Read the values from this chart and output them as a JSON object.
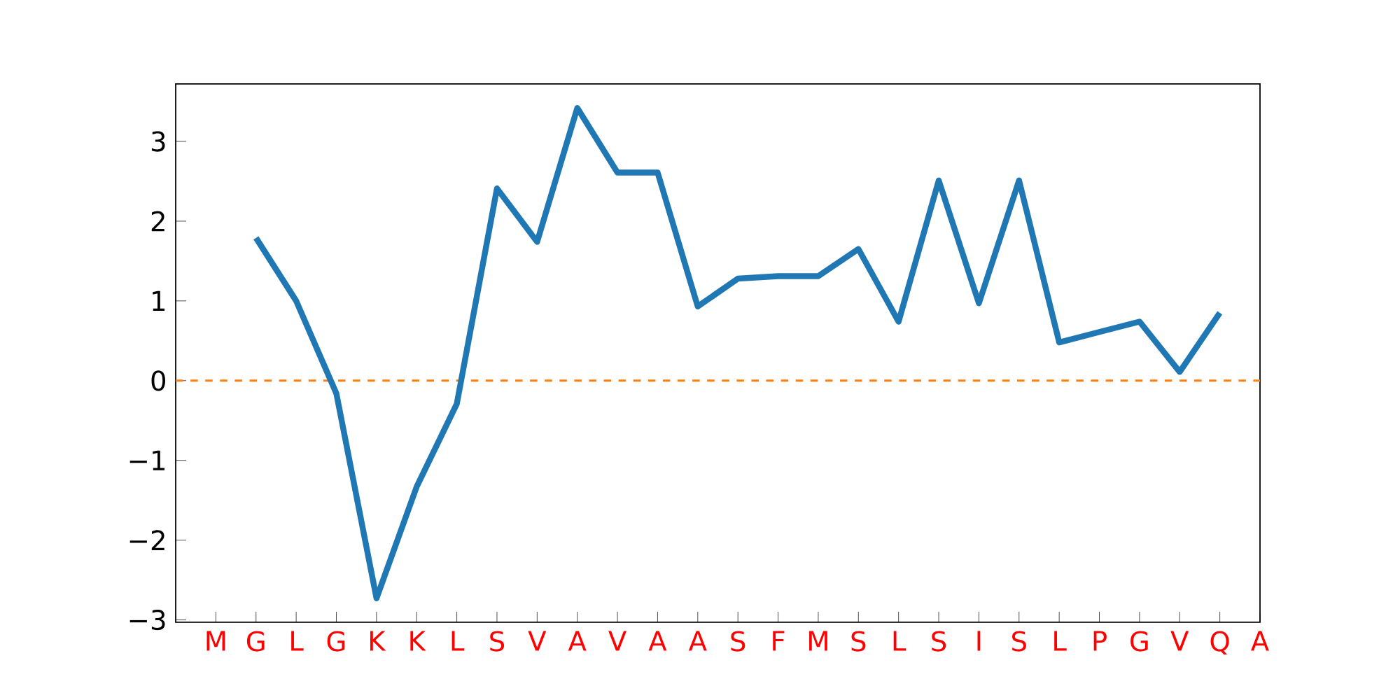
{
  "chart_data": {
    "type": "line",
    "categories": [
      "M",
      "G",
      "L",
      "G",
      "K",
      "K",
      "L",
      "S",
      "V",
      "A",
      "V",
      "A",
      "A",
      "S",
      "F",
      "M",
      "S",
      "L",
      "S",
      "I",
      "S",
      "L",
      "P",
      "G",
      "V",
      "Q",
      "A"
    ],
    "series": [
      {
        "color": "#1f77b4",
        "values": [
          null,
          1.79,
          1.0,
          -0.16,
          -2.73,
          -1.33,
          -0.29,
          2.41,
          1.74,
          3.42,
          2.61,
          2.61,
          0.93,
          1.28,
          1.31,
          1.31,
          1.65,
          0.74,
          2.51,
          0.97,
          2.51,
          0.48,
          0.61,
          0.74,
          0.11,
          0.85,
          null
        ]
      }
    ],
    "ylim": [
      -3.03,
      3.72
    ],
    "yticks": [
      {
        "value": -3,
        "label": "−3"
      },
      {
        "value": -2,
        "label": "−2"
      },
      {
        "value": -1,
        "label": "−1"
      },
      0,
      1,
      2,
      3
    ],
    "ref_lines": [
      {
        "axis": "y",
        "value": 0,
        "color": "#ff7f0e",
        "line_style": "dashed"
      }
    ],
    "grid": false,
    "marker": "none",
    "line_style": "solid"
  }
}
